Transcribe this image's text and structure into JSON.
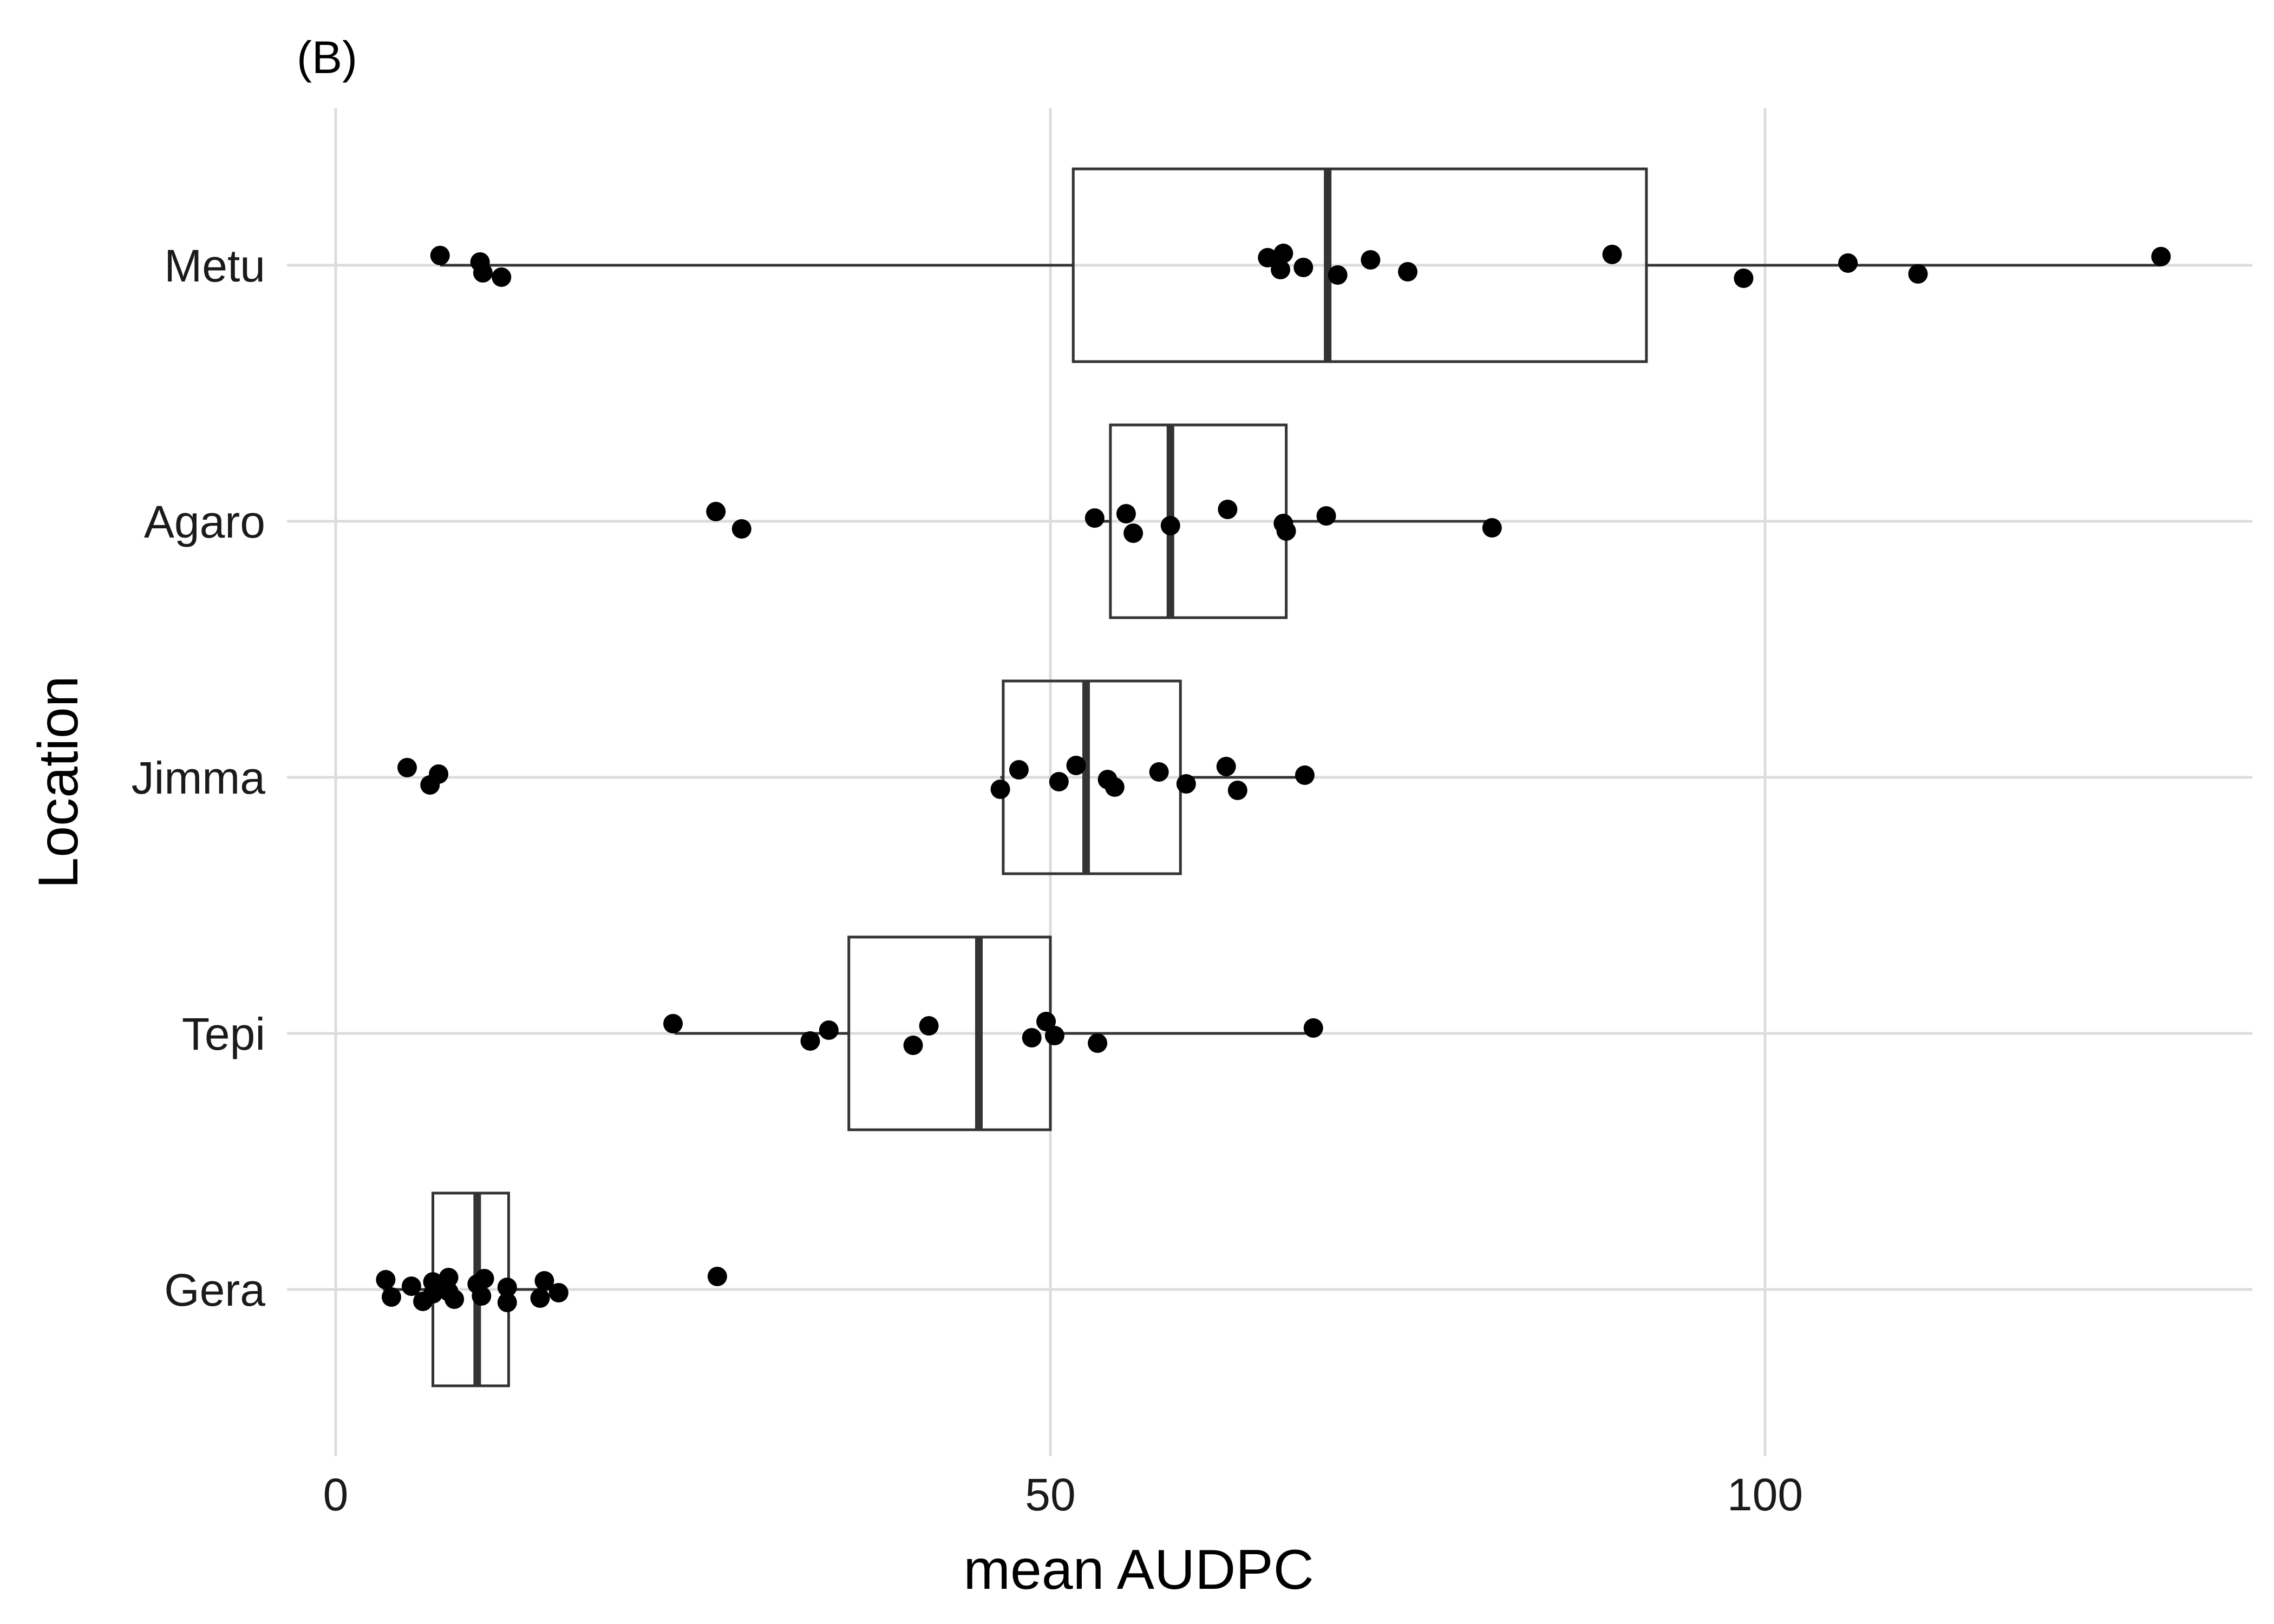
{
  "chart_data": {
    "type": "boxplot",
    "orientation": "horizontal",
    "panel_label": "(B)",
    "xlabel": "mean AUDPC",
    "ylabel": "Location",
    "xlim": [
      -2.5,
      134
    ],
    "x_ticks": [
      0,
      50,
      100
    ],
    "grid": true,
    "categories": [
      "Metu",
      "Agaro",
      "Jimma",
      "Tepi",
      "Gera"
    ],
    "boxes": [
      {
        "category": "Metu",
        "whisker_low": 7.3,
        "q1": 51.6,
        "median": 69.4,
        "q3": 91.7,
        "whisker_high": 127.7
      },
      {
        "category": "Agaro",
        "whisker_low": 53.1,
        "q1": 54.2,
        "median": 58.4,
        "q3": 66.5,
        "whisker_high": 80.9
      },
      {
        "category": "Jimma",
        "whisker_low": 46.5,
        "q1": 46.7,
        "median": 52.5,
        "q3": 59.1,
        "whisker_high": 68.0
      },
      {
        "category": "Tepi",
        "whisker_low": 23.7,
        "q1": 35.9,
        "median": 45.0,
        "q3": 50.0,
        "whisker_high": 68.5
      },
      {
        "category": "Gera",
        "whisker_low": 3.3,
        "q1": 6.8,
        "median": 9.9,
        "q3": 12.1,
        "whisker_high": 15.6
      }
    ],
    "points": [
      {
        "category": "Metu",
        "values": [
          7.3,
          10.3,
          10.1,
          11.6,
          65.2,
          66.1,
          66.3,
          67.7,
          70.1,
          72.4,
          75.0,
          89.3,
          98.5,
          105.8,
          110.7,
          127.7
        ]
      },
      {
        "category": "Agaro",
        "values": [
          26.6,
          28.4,
          53.1,
          55.8,
          55.3,
          58.4,
          62.4,
          66.3,
          66.5,
          69.3,
          80.9
        ]
      },
      {
        "category": "Jimma",
        "values": [
          5.0,
          6.6,
          7.2,
          46.5,
          47.8,
          50.6,
          51.8,
          54.0,
          54.5,
          57.6,
          59.5,
          62.3,
          63.1,
          67.8
        ]
      },
      {
        "category": "Tepi",
        "values": [
          23.6,
          33.2,
          34.5,
          40.4,
          41.5,
          48.7,
          49.7,
          50.3,
          53.3,
          68.4
        ]
      },
      {
        "category": "Gera",
        "values": [
          3.5,
          3.9,
          5.3,
          6.1,
          6.8,
          6.8,
          7.9,
          7.9,
          8.3,
          9.9,
          10.2,
          10.4,
          12.0,
          12.0,
          14.3,
          14.6,
          15.6,
          26.7
        ]
      }
    ]
  }
}
